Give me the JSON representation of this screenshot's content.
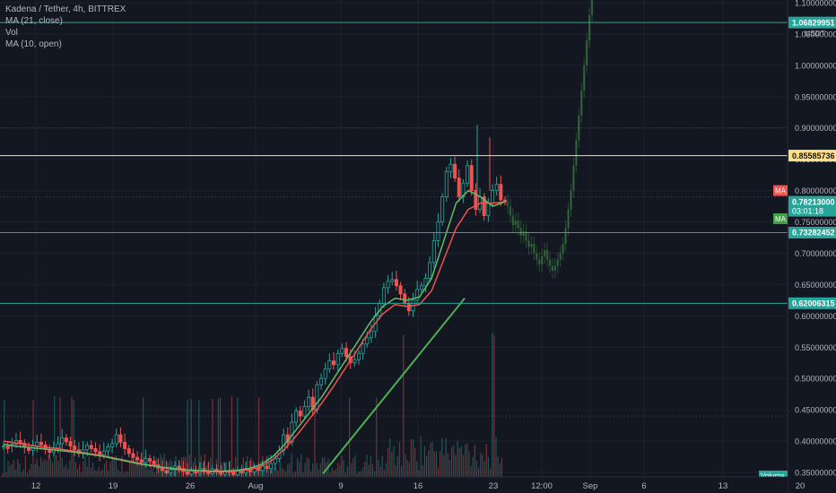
{
  "chart_data": {
    "type": "candlestick",
    "legend": {
      "symbol": "Kadena / Tether, 4h, BITTREX",
      "ma1": "MA (21, close)",
      "vol": "Vol",
      "ma2": "MA (10, open)"
    },
    "currency_label": "USDT",
    "y_axis_ticks": [
      "0.35000000",
      "0.40000000",
      "0.45000000",
      "0.50000000",
      "0.55000000",
      "0.60000000",
      "0.65000000",
      "0.70000000",
      "0.75000000",
      "0.80000000",
      "0.85000000",
      "0.90000000",
      "0.95000000",
      "1.00000000",
      "1.05000000",
      "1.10000000"
    ],
    "x_axis_ticks": [
      "12",
      "19",
      "26",
      "Aug",
      "9",
      "16",
      "23",
      "12:00",
      "Sep",
      "6",
      "13",
      "20"
    ],
    "horizontal_levels": [
      {
        "price": "1.06829951",
        "value": 1.06829951,
        "color": "#26a69a"
      },
      {
        "price": "0.85585736",
        "value": 0.85585736,
        "color": "#ffe082"
      },
      {
        "price": "0.73282452",
        "value": 0.73282452,
        "color": "#26a69a"
      },
      {
        "price": "0.62006315",
        "value": 0.62006315,
        "color": "#26a69a"
      }
    ],
    "current_price": {
      "value": 0.78213,
      "label": "0.78213000",
      "countdown": "03:01:18",
      "color": "#26a69a"
    },
    "ma_badges": [
      {
        "label": "MA",
        "value": 0.8,
        "color": "#ef5350"
      },
      {
        "label": "MA",
        "value": 0.755,
        "color": "#43a047"
      }
    ],
    "volume_badge": "Volume",
    "dotted_levels": [
      0.9,
      0.79,
      0.44
    ],
    "candles_close": [
      0.392,
      0.388,
      0.395,
      0.401,
      0.397,
      0.39,
      0.385,
      0.392,
      0.398,
      0.394,
      0.387,
      0.382,
      0.389,
      0.396,
      0.405,
      0.399,
      0.392,
      0.386,
      0.38,
      0.386,
      0.393,
      0.388,
      0.383,
      0.378,
      0.384,
      0.391,
      0.396,
      0.41,
      0.398,
      0.388,
      0.38,
      0.374,
      0.37,
      0.366,
      0.372,
      0.368,
      0.362,
      0.357,
      0.353,
      0.349,
      0.354,
      0.36,
      0.356,
      0.351,
      0.347,
      0.353,
      0.349,
      0.356,
      0.352,
      0.348,
      0.355,
      0.351,
      0.347,
      0.353,
      0.35,
      0.346,
      0.352,
      0.349,
      0.355,
      0.351,
      0.358,
      0.353,
      0.36,
      0.356,
      0.364,
      0.372,
      0.385,
      0.41,
      0.398,
      0.43,
      0.448,
      0.44,
      0.455,
      0.47,
      0.45,
      0.49,
      0.5,
      0.515,
      0.528,
      0.522,
      0.54,
      0.548,
      0.535,
      0.525,
      0.53,
      0.54,
      0.555,
      0.565,
      0.575,
      0.6,
      0.62,
      0.645,
      0.655,
      0.658,
      0.648,
      0.635,
      0.62,
      0.608,
      0.625,
      0.642,
      0.648,
      0.66,
      0.685,
      0.72,
      0.75,
      0.79,
      0.83,
      0.842,
      0.82,
      0.79,
      0.812,
      0.84,
      0.8,
      0.77,
      0.79,
      0.76,
      0.78,
      0.8,
      0.81,
      0.785,
      0.782
    ],
    "candles_open_offset": [
      0.0,
      0.004,
      -0.003,
      -0.006,
      0.004,
      0.007,
      0.005,
      -0.007,
      -0.006,
      0.004,
      0.007,
      0.005,
      -0.007,
      -0.007,
      -0.009,
      0.006,
      0.007,
      0.006,
      0.006,
      -0.006,
      -0.007,
      0.005,
      0.005,
      0.005,
      -0.006,
      -0.007,
      -0.005,
      -0.014,
      0.012,
      0.01,
      0.008,
      0.006,
      0.004,
      0.004,
      -0.006,
      0.004,
      0.006,
      0.005,
      0.004,
      0.004,
      -0.005,
      -0.006,
      0.004,
      0.005,
      0.004,
      -0.006,
      0.004,
      -0.007,
      0.004,
      0.004,
      -0.007,
      0.004,
      0.004,
      -0.006,
      0.003,
      0.004,
      -0.006,
      0.003,
      -0.006,
      0.004,
      -0.007,
      0.005,
      -0.007,
      0.004,
      -0.008,
      -0.008,
      -0.013,
      -0.025,
      0.012,
      -0.032,
      -0.018,
      0.008,
      -0.015,
      -0.015,
      0.02,
      -0.04,
      -0.01,
      -0.015,
      -0.013,
      0.006,
      -0.018,
      -0.008,
      0.013,
      0.01,
      -0.005,
      -0.01,
      -0.015,
      -0.01,
      -0.01,
      -0.025,
      -0.02,
      -0.025,
      -0.01,
      -0.003,
      0.01,
      0.013,
      0.015,
      0.012,
      -0.017,
      -0.017,
      -0.006,
      -0.012,
      -0.025,
      -0.035,
      -0.03,
      -0.04,
      -0.04,
      -0.012,
      0.022,
      0.03,
      -0.022,
      -0.028,
      0.04,
      0.03,
      -0.02,
      0.03,
      -0.02,
      -0.02,
      -0.01,
      0.025,
      0.003
    ],
    "forecast_close": [
      0.775,
      0.76,
      0.745,
      0.752,
      0.74,
      0.728,
      0.735,
      0.72,
      0.71,
      0.715,
      0.7,
      0.69,
      0.682,
      0.695,
      0.705,
      0.69,
      0.68,
      0.672,
      0.68,
      0.69,
      0.7,
      0.715,
      0.74,
      0.77,
      0.8,
      0.84,
      0.88,
      0.92,
      0.96,
      1.0,
      1.04,
      1.08,
      1.12
    ],
    "ma_green": [
      0.395,
      0.392,
      0.39,
      0.388,
      0.386,
      0.384,
      0.382,
      0.379,
      0.376,
      0.372,
      0.368,
      0.364,
      0.361,
      0.358,
      0.356,
      0.354,
      0.353,
      0.352,
      0.352,
      0.353,
      0.356,
      0.362,
      0.375,
      0.395,
      0.42,
      0.445,
      0.47,
      0.5,
      0.53,
      0.56,
      0.59,
      0.615,
      0.628,
      0.625,
      0.63,
      0.66,
      0.72,
      0.78,
      0.8,
      0.79,
      0.775,
      0.782
    ],
    "ma_red": [
      0.4,
      0.397,
      0.394,
      0.391,
      0.389,
      0.386,
      0.383,
      0.38,
      0.377,
      0.373,
      0.369,
      0.365,
      0.361,
      0.358,
      0.355,
      0.353,
      0.352,
      0.351,
      0.351,
      0.352,
      0.354,
      0.359,
      0.37,
      0.388,
      0.41,
      0.435,
      0.46,
      0.488,
      0.518,
      0.548,
      0.578,
      0.603,
      0.618,
      0.615,
      0.618,
      0.64,
      0.69,
      0.74,
      0.77,
      0.78,
      0.78,
      0.782
    ],
    "trendline": [
      [
        0.348,
        0.348
      ],
      [
        0.628,
        0.628
      ]
    ]
  }
}
